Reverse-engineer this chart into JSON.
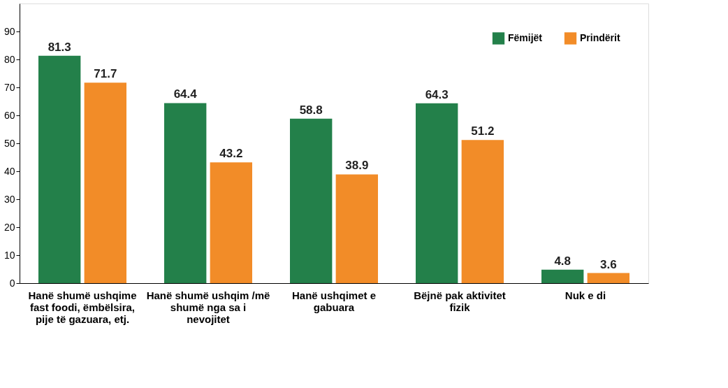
{
  "chart_data": {
    "type": "bar",
    "categories": [
      "Hanë shumë ushqime fast foodi, ëmbëlsira, pije të gazuara, etj.",
      "Hanë shumë ushqim /më shumë nga sa i nevojitet",
      "Hanë ushqimet e gabuara",
      "Bëjnë pak aktivitet fizik",
      "Nuk e di"
    ],
    "series": [
      {
        "name": "Fëmijët",
        "color": "#23804a",
        "values": [
          81.3,
          64.4,
          58.8,
          64.3,
          4.8
        ]
      },
      {
        "name": "Prindërit",
        "color": "#f28c28",
        "values": [
          71.7,
          43.2,
          38.9,
          51.2,
          3.6
        ]
      }
    ],
    "ylim": [
      0,
      100
    ],
    "yticks": [
      0,
      10,
      20,
      30,
      40,
      50,
      60,
      70,
      80,
      90
    ],
    "data_labels": true,
    "legend": "top right",
    "grid": false
  }
}
